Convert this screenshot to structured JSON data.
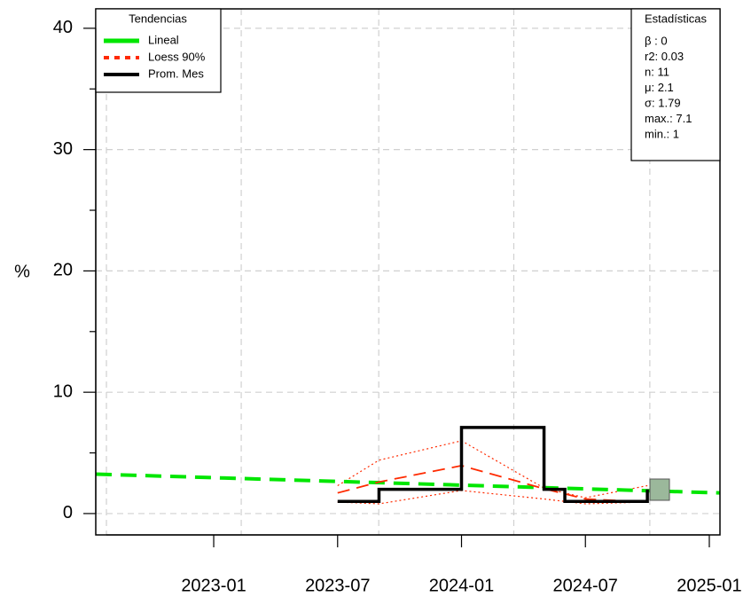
{
  "chart_data": {
    "type": "line",
    "ylabel": "%",
    "xlim": [
      2022.524,
      2025.043
    ],
    "ylim": [
      -1.76,
      41.6
    ],
    "xticks": [
      {
        "value": 2023.0,
        "label": "2023-01"
      },
      {
        "value": 2023.5,
        "label": "2023-07"
      },
      {
        "value": 2024.0,
        "label": "2024-01"
      },
      {
        "value": 2024.5,
        "label": "2024-07"
      },
      {
        "value": 2025.0,
        "label": "2025-01"
      }
    ],
    "xgrid": [
      2022.567,
      2023.111,
      2023.666,
      2024.211,
      2024.76
    ],
    "yticks": [
      0,
      10,
      20,
      30,
      40
    ],
    "yminor": [
      5,
      15,
      25,
      35
    ],
    "grid": true,
    "legend_title": "Tendencias",
    "legend": "top-left",
    "series": [
      {
        "name": "Lineal",
        "color": "#00e600",
        "style": "dashed",
        "x": [
          2022.524,
          2025.043
        ],
        "values": [
          3.25,
          1.7
        ]
      },
      {
        "name": "Loess 90%",
        "color": "#ff2a00",
        "style": "dashed",
        "x": [
          2023.5,
          2023.667,
          2024.0,
          2024.333,
          2024.5,
          2024.75
        ],
        "values": [
          1.7,
          2.6,
          3.95,
          2.05,
          1.2,
          0.95
        ]
      },
      {
        "name": "Prom. Mes",
        "color": "#000000",
        "style": "step",
        "x": [
          2023.5,
          2023.667,
          2024.0,
          2024.333,
          2024.417,
          2024.75
        ],
        "values": [
          1,
          2,
          7.1,
          2,
          1,
          2
        ]
      }
    ],
    "loess_band": {
      "color": "#ff2a00",
      "x": [
        2023.5,
        2023.667,
        2024.0,
        2024.333,
        2024.5,
        2024.75
      ],
      "upper": [
        2.3,
        4.4,
        6.0,
        2.1,
        1.3,
        2.3
      ],
      "lower": [
        0.95,
        0.8,
        1.9,
        1.2,
        0.8,
        0.95
      ]
    },
    "stats_title": "Estadísticas",
    "stats": [
      "β : 0",
      "r2: 0.03",
      "n: 11",
      "μ: 2.1",
      "σ: 1.79",
      "max.: 7.1",
      "min.: 1"
    ]
  }
}
